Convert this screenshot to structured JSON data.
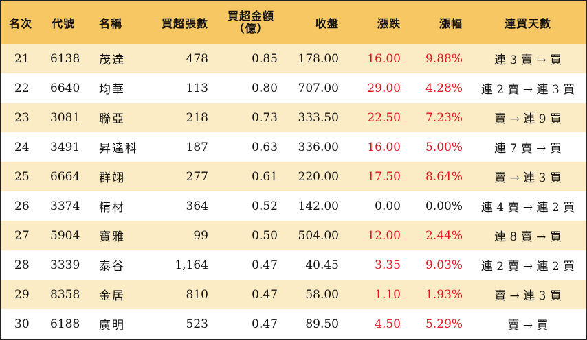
{
  "headers": {
    "rank": "名次",
    "code": "代號",
    "name": "名稱",
    "net_lots": "買超張數",
    "net_amount_line1": "買超金額",
    "net_amount_line2": "（億）",
    "close": "收盤",
    "change": "漲跌",
    "pct": "漲幅",
    "streak": "連買天數"
  },
  "colors": {
    "header_bg": "#f6c763",
    "stripe_bg": "#fbecc6",
    "positive": "#e8141e"
  },
  "rows": [
    {
      "rank": "21",
      "code": "6138",
      "name": "茂達",
      "net_lots": "478",
      "net_amount": "0.85",
      "close": "178.00",
      "change": "16.00",
      "pct": "9.88%",
      "streak": "連 3 賣 → 買",
      "up": true
    },
    {
      "rank": "22",
      "code": "6640",
      "name": "均華",
      "net_lots": "113",
      "net_amount": "0.80",
      "close": "707.00",
      "change": "29.00",
      "pct": "4.28%",
      "streak": "連 2 賣 → 連 3 買",
      "up": true
    },
    {
      "rank": "23",
      "code": "3081",
      "name": "聯亞",
      "net_lots": "218",
      "net_amount": "0.73",
      "close": "333.50",
      "change": "22.50",
      "pct": "7.23%",
      "streak": "賣 → 連 9 買",
      "up": true
    },
    {
      "rank": "24",
      "code": "3491",
      "name": "昇達科",
      "net_lots": "187",
      "net_amount": "0.63",
      "close": "336.00",
      "change": "16.00",
      "pct": "5.00%",
      "streak": "連 7 賣 → 買",
      "up": true
    },
    {
      "rank": "25",
      "code": "6664",
      "name": "群翊",
      "net_lots": "277",
      "net_amount": "0.61",
      "close": "220.00",
      "change": "17.50",
      "pct": "8.64%",
      "streak": "賣 → 連 3 買",
      "up": true
    },
    {
      "rank": "26",
      "code": "3374",
      "name": "精材",
      "net_lots": "364",
      "net_amount": "0.52",
      "close": "142.00",
      "change": "0.00",
      "pct": "0.00%",
      "streak": "連 4 賣 → 連 2 買",
      "up": false
    },
    {
      "rank": "27",
      "code": "5904",
      "name": "寶雅",
      "net_lots": "99",
      "net_amount": "0.50",
      "close": "504.00",
      "change": "12.00",
      "pct": "2.44%",
      "streak": "連 8 賣 → 買",
      "up": true
    },
    {
      "rank": "28",
      "code": "3339",
      "name": "泰谷",
      "net_lots": "1,164",
      "net_amount": "0.47",
      "close": "40.45",
      "change": "3.35",
      "pct": "9.03%",
      "streak": "連 2 賣 → 連 2 買",
      "up": true
    },
    {
      "rank": "29",
      "code": "8358",
      "name": "金居",
      "net_lots": "810",
      "net_amount": "0.47",
      "close": "58.00",
      "change": "1.10",
      "pct": "1.93%",
      "streak": "賣 → 連 3 買",
      "up": true
    },
    {
      "rank": "30",
      "code": "6188",
      "name": "廣明",
      "net_lots": "523",
      "net_amount": "0.47",
      "close": "89.50",
      "change": "4.50",
      "pct": "5.29%",
      "streak": "賣 → 買",
      "up": true
    }
  ]
}
